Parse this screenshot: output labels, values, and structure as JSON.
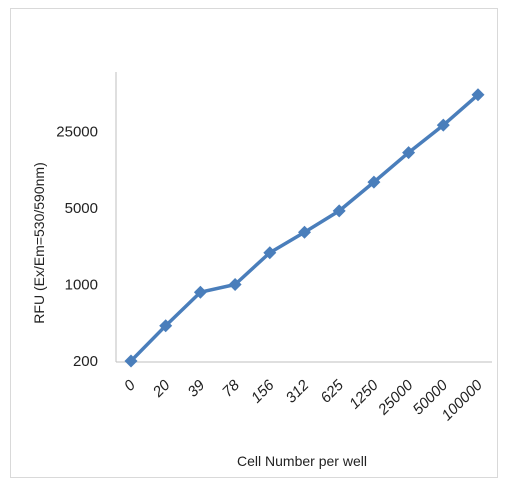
{
  "chart_data": {
    "type": "line",
    "title": "",
    "xlabel": "Cell Number per well",
    "ylabel": "RFU (Ex/Em=530/590nm)",
    "yscale": "log",
    "categories": [
      "0",
      "20",
      "39",
      "78",
      "156",
      "312",
      "625",
      "1250",
      "25000",
      "50000",
      "100000"
    ],
    "y_ticks": [
      200,
      1000,
      5000,
      25000
    ],
    "ylim": [
      200,
      75000
    ],
    "series": [
      {
        "values": [
          200,
          420,
          850,
          1000,
          1950,
          3000,
          4700,
          8600,
          16000,
          28500,
          54000
        ],
        "color": "#4a7ebb",
        "marker": "diamond"
      }
    ],
    "grid": false,
    "legend": "none"
  }
}
